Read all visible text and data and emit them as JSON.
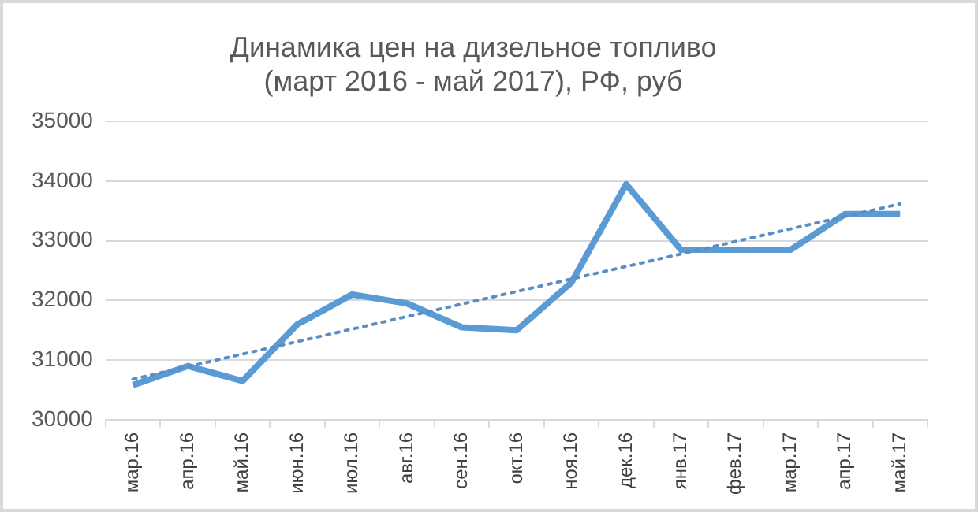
{
  "chart_data": {
    "type": "line",
    "title": "Динамика цен на дизельное топливо\n(март 2016 - май 2017), РФ, руб",
    "categories": [
      "мар.16",
      "апр.16",
      "май.16",
      "июн.16",
      "июл.16",
      "авг.16",
      "сен.16",
      "окт.16",
      "ноя.16",
      "дек.16",
      "янв.17",
      "фев.17",
      "мар.17",
      "апр.17",
      "май.17"
    ],
    "series": [
      {
        "color": "#5b9bd5",
        "values": [
          30580,
          30900,
          30650,
          31600,
          32100,
          31950,
          31550,
          31500,
          32300,
          33950,
          32850,
          32850,
          32850,
          33450,
          33450
        ]
      },
      {
        "type": "line",
        "color": "#5b8fc4",
        "line_style": "dotted",
        "x": [
          "мар.16",
          "май.17"
        ],
        "values": [
          30680,
          33620
        ]
      }
    ],
    "ylim": [
      30000,
      35000
    ],
    "yticks": [
      30000,
      31000,
      32000,
      33000,
      34000,
      35000
    ],
    "grid": "y",
    "legend": false,
    "marker": "none"
  }
}
